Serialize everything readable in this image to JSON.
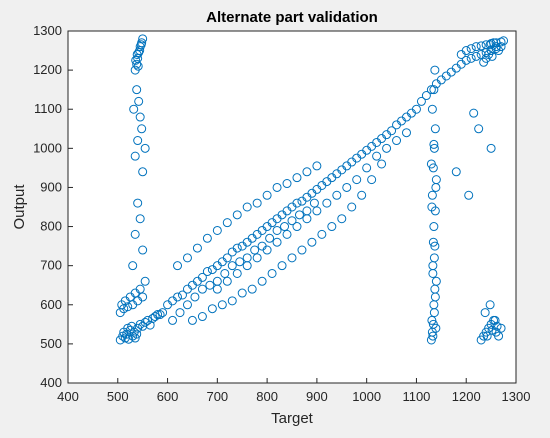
{
  "chart_data": {
    "type": "scatter",
    "title": "Alternate part validation",
    "xlabel": "Target",
    "ylabel": "Output",
    "xlim": [
      400,
      1300
    ],
    "ylim": [
      400,
      1300
    ],
    "xticks": [
      "400",
      "500",
      "600",
      "700",
      "800",
      "900",
      "1000",
      "1100",
      "1200",
      "1300"
    ],
    "yticks": [
      "400",
      "500",
      "600",
      "700",
      "800",
      "900",
      "1000",
      "1100",
      "1200",
      "1300"
    ],
    "grid": false,
    "marker": "open-circle",
    "series_color": "#0072BD",
    "series": [
      {
        "x": [
          505,
          510,
          512,
          515,
          518,
          520,
          522,
          525,
          528,
          530,
          533,
          535,
          538,
          540,
          545,
          550,
          555,
          560,
          565,
          570,
          575,
          580,
          505,
          508,
          512,
          515,
          520,
          525,
          530,
          535,
          540,
          545,
          550,
          585,
          590,
          600,
          610,
          620,
          630,
          640,
          650,
          660,
          670,
          680,
          690,
          700,
          710,
          720,
          730,
          740,
          750,
          760,
          770,
          780,
          790,
          800,
          810,
          820,
          830,
          840,
          850,
          860,
          870,
          880,
          890,
          900,
          910,
          920,
          930,
          940,
          950,
          960,
          970,
          980,
          990,
          1000,
          1010,
          1020,
          1030,
          1040,
          1050,
          1060,
          1070,
          1080,
          1090,
          1100,
          1110,
          1120,
          1130,
          1140,
          1150,
          1160,
          1170,
          1180,
          1190,
          1200,
          1210,
          1220,
          1230,
          1240,
          1250,
          1260,
          1270,
          610,
          625,
          640,
          655,
          670,
          685,
          700,
          715,
          730,
          745,
          760,
          775,
          790,
          805,
          820,
          835,
          850,
          865,
          880,
          895,
          620,
          640,
          660,
          680,
          700,
          720,
          740,
          760,
          780,
          800,
          820,
          840,
          860,
          880,
          900,
          650,
          670,
          690,
          710,
          730,
          750,
          770,
          790,
          810,
          830,
          850,
          870,
          890,
          910,
          930,
          950,
          970,
          990,
          1010,
          1030,
          700,
          720,
          740,
          760,
          780,
          800,
          820,
          840,
          860,
          880,
          900,
          920,
          940,
          960,
          980,
          1000,
          1020,
          1040,
          1060,
          1080,
          535,
          538,
          540,
          542,
          545,
          548,
          550,
          536,
          544,
          547,
          539,
          541,
          538,
          542,
          545,
          548,
          540,
          535,
          550,
          532,
          555,
          540,
          545,
          535,
          550,
          530,
          555,
          1130,
          1132,
          1134,
          1136,
          1138,
          1140,
          1133,
          1137,
          1135,
          1131,
          1139,
          1134,
          1136,
          1138,
          1132,
          1135,
          1137,
          1133,
          1139,
          1131,
          1135,
          1137,
          1133,
          1136,
          1134,
          1138,
          1132,
          1140,
          1130,
          1135,
          1230,
          1235,
          1240,
          1245,
          1250,
          1255,
          1260,
          1265,
          1270,
          1238,
          1248,
          1258,
          1242,
          1252,
          1262,
          1250,
          1240,
          1260,
          1245,
          1255,
          1235,
          1265,
          1248,
          1252,
          1215,
          1225,
          1250,
          1180,
          1205,
          1190,
          1200,
          1210,
          1220,
          1230,
          1240,
          1250,
          1260,
          1270,
          1275
        ],
        "y": [
          510,
          520,
          530,
          515,
          525,
          540,
          512,
          535,
          545,
          520,
          530,
          515,
          525,
          540,
          550,
          545,
          555,
          560,
          548,
          565,
          570,
          575,
          580,
          600,
          590,
          610,
          595,
          620,
          600,
          630,
          610,
          640,
          620,
          575,
          580,
          600,
          610,
          620,
          625,
          640,
          650,
          660,
          670,
          685,
          690,
          700,
          710,
          720,
          735,
          745,
          750,
          760,
          770,
          780,
          790,
          800,
          810,
          820,
          830,
          840,
          850,
          860,
          865,
          875,
          885,
          895,
          905,
          915,
          925,
          935,
          945,
          955,
          965,
          975,
          985,
          995,
          1005,
          1015,
          1025,
          1035,
          1045,
          1060,
          1070,
          1080,
          1090,
          1100,
          1120,
          1135,
          1150,
          1165,
          1175,
          1185,
          1195,
          1205,
          1215,
          1225,
          1230,
          1235,
          1240,
          1245,
          1250,
          1255,
          1260,
          560,
          580,
          600,
          620,
          640,
          650,
          660,
          680,
          700,
          710,
          720,
          740,
          750,
          770,
          790,
          800,
          815,
          830,
          840,
          860,
          700,
          720,
          745,
          770,
          790,
          810,
          830,
          850,
          860,
          880,
          900,
          910,
          925,
          940,
          955,
          560,
          570,
          590,
          600,
          610,
          630,
          640,
          660,
          680,
          700,
          720,
          740,
          760,
          780,
          800,
          820,
          850,
          880,
          920,
          960,
          640,
          660,
          680,
          700,
          720,
          740,
          760,
          780,
          800,
          820,
          840,
          860,
          880,
          900,
          920,
          950,
          980,
          1000,
          1020,
          1040,
          1200,
          1215,
          1230,
          1245,
          1260,
          1270,
          1280,
          1225,
          1250,
          1265,
          1240,
          1210,
          1150,
          1120,
          1080,
          1050,
          1020,
          980,
          940,
          1100,
          1000,
          860,
          820,
          780,
          740,
          700,
          660,
          510,
          530,
          550,
          580,
          620,
          660,
          700,
          750,
          800,
          850,
          900,
          950,
          1000,
          1050,
          1100,
          1150,
          1200,
          520,
          540,
          560,
          600,
          640,
          680,
          720,
          760,
          840,
          880,
          920,
          960,
          1010,
          510,
          520,
          530,
          540,
          550,
          560,
          530,
          520,
          540,
          580,
          600,
          560,
          520,
          535,
          545,
          1250,
          1230,
          1260,
          1240,
          1270,
          1220,
          1250,
          1265,
          1235,
          1090,
          1050,
          1000,
          940,
          880,
          1240,
          1250,
          1255,
          1260,
          1262,
          1265,
          1268,
          1270,
          1272,
          1275
        ]
      }
    ]
  }
}
